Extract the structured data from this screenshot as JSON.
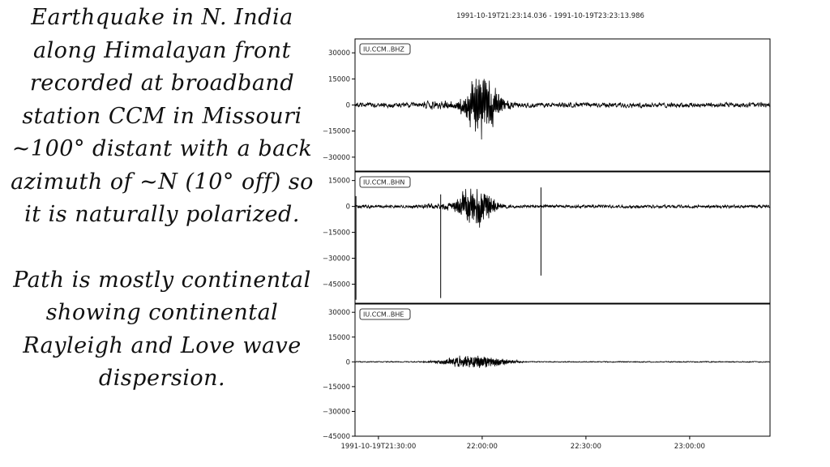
{
  "slide": {
    "para1": [
      "Earthquake in N. India",
      "along Himalayan front",
      "recorded at broadband",
      "station CCM in Missouri",
      "~100° distant with a back",
      "azimuth of ~N (10° off) so",
      "it is naturally polarized."
    ],
    "para2": [
      "Path is mostly continental",
      "showing continental",
      "Rayleigh and Love wave",
      "dispersion."
    ]
  },
  "chart_data": {
    "type": "line",
    "title": "1991-10-19T21:23:14.036  -  1991-10-19T23:23:13.986",
    "x_ticks": [
      "1991-10-19T21:30:00",
      "22:00:00",
      "22:30:00",
      "23:00:00"
    ],
    "x_range_minutes": [
      -6.77,
      113.23
    ],
    "grid": false,
    "traces": [
      {
        "name": "IU.CCM..BHZ",
        "ylim": [
          -38000,
          38000
        ],
        "yticks": [
          30000,
          15000,
          0,
          -15000,
          -30000
        ],
        "peak_amplitude": 30000,
        "envelope_center_min": 30,
        "envelope_width_min": 5,
        "spikes": []
      },
      {
        "name": "IU.CCM..BHN",
        "ylim": [
          -56000,
          20000
        ],
        "yticks": [
          15000,
          0,
          -15000,
          -30000,
          -45000
        ],
        "peak_amplitude": 20000,
        "envelope_center_min": 28,
        "envelope_width_min": 5,
        "spikes": [
          {
            "minute": -6.5,
            "low": -54000,
            "high": 6000
          },
          {
            "minute": 18,
            "low": -53000,
            "high": 7000
          },
          {
            "minute": 47,
            "low": -40000,
            "high": 11000
          }
        ]
      },
      {
        "name": "IU.CCM..BHE",
        "ylim": [
          -45000,
          35000
        ],
        "yticks": [
          30000,
          15000,
          0,
          -15000,
          -30000,
          -45000
        ],
        "peak_amplitude": 7000,
        "envelope_center_min": 28,
        "envelope_width_min": 9,
        "spikes": []
      }
    ]
  }
}
